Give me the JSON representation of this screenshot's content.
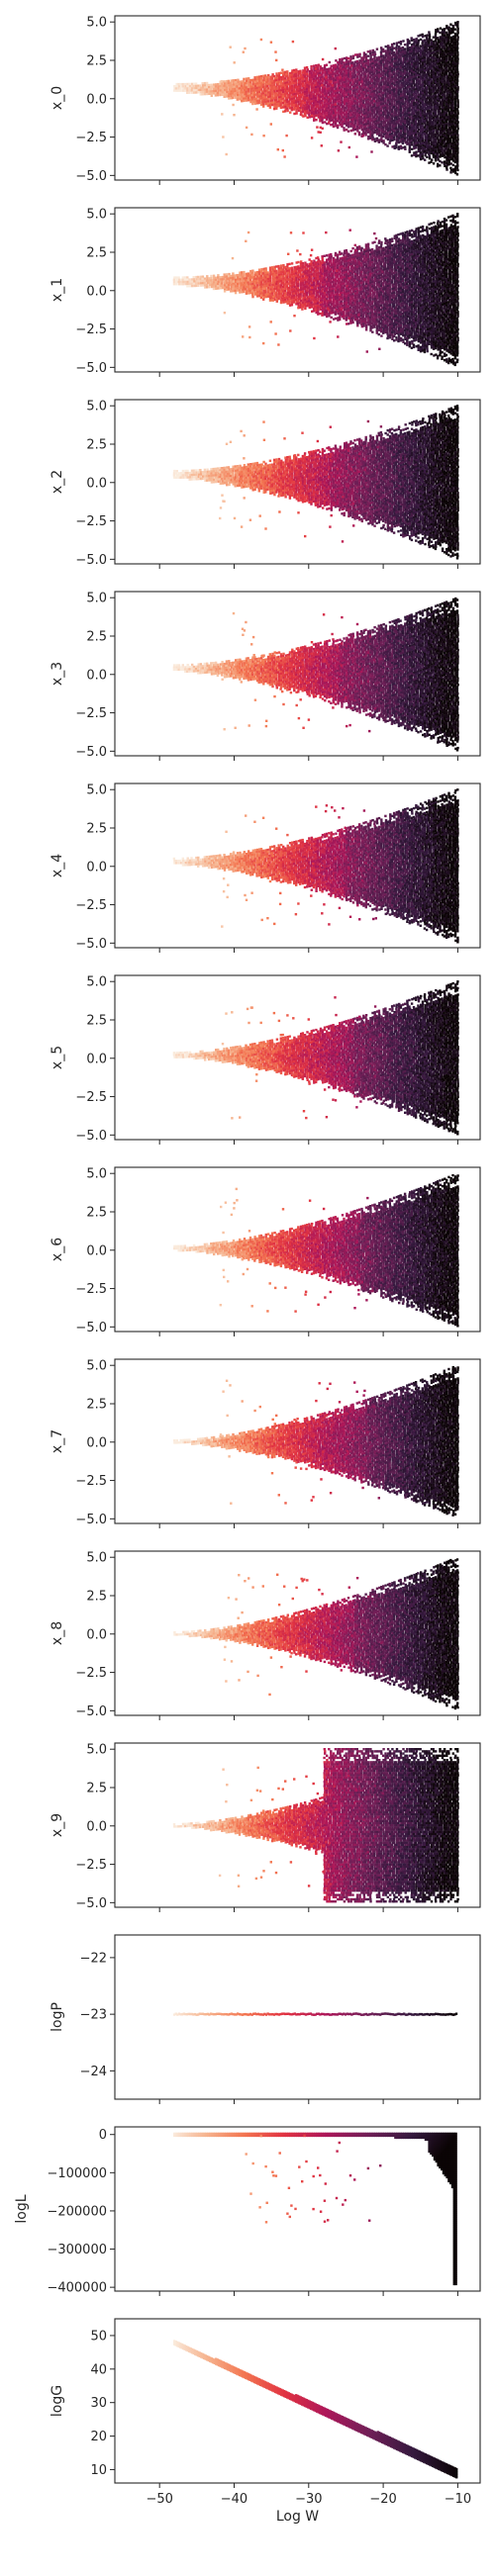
{
  "chart_data": {
    "type": "scatter",
    "description_of_marks": "hexbin density, color by log weight",
    "x_label": "Log W",
    "x_range": [
      -56,
      -7
    ],
    "x_ticks": [
      -50,
      -40,
      -30,
      -20,
      -10
    ],
    "x_tick_labels": [
      "−50",
      "−40",
      "−30",
      "−20",
      "−10"
    ],
    "colormap": [
      "#faebdd",
      "#f6b48f",
      "#f37651",
      "#e13342",
      "#ad1759",
      "#701f57",
      "#35193e",
      "#0b0405"
    ],
    "panels": [
      {
        "ylabel": "x_0",
        "ylim": [
          -5.3,
          5.4
        ],
        "yticks": [
          5.0,
          2.5,
          0.0,
          -2.5,
          -5.0
        ],
        "ytick_labels": [
          "5.0",
          "2.5",
          "0.0",
          "−2.5",
          "−5.0"
        ],
        "shape": "fan",
        "center": 0.7,
        "start_x": -48,
        "start_halfwidth": 0.25,
        "end_halfwidth": 5.0,
        "kink_x": -30
      },
      {
        "ylabel": "x_1",
        "ylim": [
          -5.3,
          5.4
        ],
        "yticks": [
          5.0,
          2.5,
          0.0,
          -2.5,
          -5.0
        ],
        "ytick_labels": [
          "5.0",
          "2.5",
          "0.0",
          "−2.5",
          "−5.0"
        ],
        "shape": "fan",
        "center": 0.6,
        "start_x": -48,
        "start_halfwidth": 0.25,
        "end_halfwidth": 5.0,
        "kink_x": -28
      },
      {
        "ylabel": "x_2",
        "ylim": [
          -5.3,
          5.4
        ],
        "yticks": [
          5.0,
          2.5,
          0.0,
          -2.5,
          -5.0
        ],
        "ytick_labels": [
          "5.0",
          "2.5",
          "0.0",
          "−2.5",
          "−5.0"
        ],
        "shape": "fan",
        "center": 0.5,
        "start_x": -48,
        "start_halfwidth": 0.25,
        "end_halfwidth": 5.0,
        "kink_x": -27
      },
      {
        "ylabel": "x_3",
        "ylim": [
          -5.3,
          5.4
        ],
        "yticks": [
          5.0,
          2.5,
          0.0,
          -2.5,
          -5.0
        ],
        "ytick_labels": [
          "5.0",
          "2.5",
          "0.0",
          "−2.5",
          "−5.0"
        ],
        "shape": "fan",
        "center": 0.4,
        "start_x": -48,
        "start_halfwidth": 0.2,
        "end_halfwidth": 5.0,
        "kink_x": -26
      },
      {
        "ylabel": "x_4",
        "ylim": [
          -5.3,
          5.4
        ],
        "yticks": [
          5.0,
          2.5,
          0.0,
          -2.5,
          -5.0
        ],
        "ytick_labels": [
          "5.0",
          "2.5",
          "0.0",
          "−2.5",
          "−5.0"
        ],
        "shape": "fan",
        "center": 0.3,
        "start_x": -48,
        "start_halfwidth": 0.2,
        "end_halfwidth": 5.0,
        "kink_x": -25
      },
      {
        "ylabel": "x_5",
        "ylim": [
          -5.3,
          5.4
        ],
        "yticks": [
          5.0,
          2.5,
          0.0,
          -2.5,
          -5.0
        ],
        "ytick_labels": [
          "5.0",
          "2.5",
          "0.0",
          "−2.5",
          "−5.0"
        ],
        "shape": "fan",
        "center": 0.2,
        "start_x": -48,
        "start_halfwidth": 0.15,
        "end_halfwidth": 5.0,
        "kink_x": -24
      },
      {
        "ylabel": "x_6",
        "ylim": [
          -5.3,
          5.4
        ],
        "yticks": [
          5.0,
          2.5,
          0.0,
          -2.5,
          -5.0
        ],
        "ytick_labels": [
          "5.0",
          "2.5",
          "0.0",
          "−2.5",
          "−5.0"
        ],
        "shape": "fan",
        "center": 0.1,
        "start_x": -48,
        "start_halfwidth": 0.15,
        "end_halfwidth": 5.0,
        "kink_x": -23
      },
      {
        "ylabel": "x_7",
        "ylim": [
          -5.3,
          5.4
        ],
        "yticks": [
          5.0,
          2.5,
          0.0,
          -2.5,
          -5.0
        ],
        "ytick_labels": [
          "5.0",
          "2.5",
          "0.0",
          "−2.5",
          "−5.0"
        ],
        "shape": "fan",
        "center": 0.0,
        "start_x": -48,
        "start_halfwidth": 0.1,
        "end_halfwidth": 5.0,
        "kink_x": -22
      },
      {
        "ylabel": "x_8",
        "ylim": [
          -5.3,
          5.4
        ],
        "yticks": [
          5.0,
          2.5,
          0.0,
          -2.5,
          -5.0
        ],
        "ytick_labels": [
          "5.0",
          "2.5",
          "0.0",
          "−2.5",
          "−5.0"
        ],
        "shape": "fan",
        "center": 0.0,
        "start_x": -48,
        "start_halfwidth": 0.1,
        "end_halfwidth": 5.0,
        "kink_x": -24
      },
      {
        "ylabel": "x_9",
        "ylim": [
          -5.3,
          5.4
        ],
        "yticks": [
          5.0,
          2.5,
          0.0,
          -2.5,
          -5.0
        ],
        "ytick_labels": [
          "5.0",
          "2.5",
          "0.0",
          "−2.5",
          "−5.0"
        ],
        "shape": "fan",
        "center": 0.0,
        "start_x": -48,
        "start_halfwidth": 0.1,
        "end_halfwidth": 5.0,
        "kink_x": -27,
        "full_after": -28
      },
      {
        "ylabel": "logP",
        "ylim": [
          -24.5,
          -21.6
        ],
        "yticks": [
          -22,
          -23,
          -24
        ],
        "ytick_labels": [
          "−22",
          "−23",
          "−24"
        ],
        "shape": "flat",
        "value": -23.0,
        "start_x": -48,
        "end_x": -10
      },
      {
        "ylabel": "logL",
        "ylim": [
          -410000,
          20000
        ],
        "yticks": [
          0,
          -100000,
          -200000,
          -300000,
          -400000
        ],
        "ytick_labels": [
          "0",
          "−100000",
          "−200000",
          "−300000",
          "−400000"
        ],
        "shape": "cliff",
        "start_x": -48,
        "end_x": -10,
        "min_value": -395000
      },
      {
        "ylabel": "logG",
        "ylim": [
          6,
          55
        ],
        "yticks": [
          50,
          40,
          30,
          20,
          10
        ],
        "ytick_labels": [
          "50",
          "40",
          "30",
          "20",
          "10"
        ],
        "shape": "diagonal",
        "start_x": -48,
        "start_value": 48,
        "end_x": -10,
        "end_value": 9
      }
    ]
  }
}
